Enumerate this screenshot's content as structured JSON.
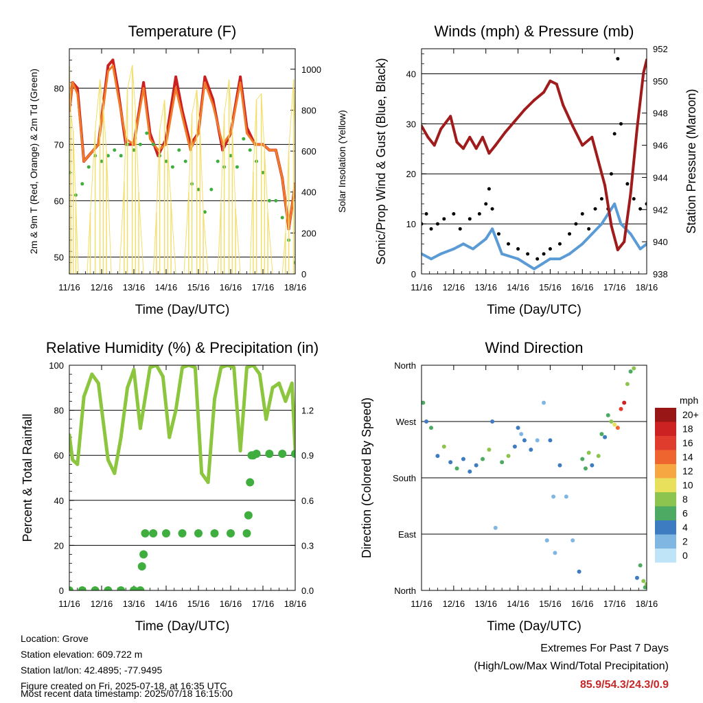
{
  "colors": {
    "temp_2m": "#cc1f1f",
    "temp_9m": "#f07c2a",
    "dewpoint": "#3fae3f",
    "solar": "#f2de6a",
    "wind_sonic": "#5b9bd5",
    "wind_gust": "#000000",
    "pressure": "#a01c1c",
    "rh": "#8cc63f",
    "precip": "#3fae3f"
  },
  "wind_scale": {
    "title": "mph",
    "labels": [
      "20+",
      "18",
      "16",
      "14",
      "12",
      "10",
      "8",
      "6",
      "4",
      "2",
      "0"
    ],
    "colors": [
      "#991616",
      "#cc2222",
      "#e03c2e",
      "#ef6530",
      "#f7a742",
      "#e8e05a",
      "#8cc44f",
      "#4caa62",
      "#3d7cc0",
      "#7fb6e2",
      "#bfe3f7"
    ]
  },
  "footer": {
    "location": "Location: Grove",
    "elevation": "Station elevation: 609.722 m",
    "latlon": "Station lat/lon: 42.4895; -77.9495",
    "created": "Figure created on Fri, 2025-07-18, at 16:35 UTC",
    "recent": "Most recent data timestamp: 2025/07/18 16:15:00"
  },
  "extremes": {
    "title": "Extremes For Past 7 Days",
    "subtitle": "(High/Low/Max Wind/Total Precipitation)",
    "values": "85.9/54.3/24.3/0.9"
  },
  "chart_data": [
    {
      "id": "temperature",
      "type": "line",
      "title": "Temperature (F)",
      "xlabel": "Time (Day/UTC)",
      "ylabel": "2m & 9m T (Red, Orange) & 2m Td (Green)",
      "ylabel_right": "Solar Insolation (Yellow)",
      "x_ticks": [
        "11/16",
        "12/16",
        "13/16",
        "14/16",
        "15/16",
        "16/16",
        "17/16",
        "18/16"
      ],
      "xlim": [
        0,
        7
      ],
      "ylim": [
        47,
        87
      ],
      "y_ticks": [
        50,
        60,
        70,
        80
      ],
      "y2lim": [
        0,
        1100
      ],
      "y2_ticks": [
        0,
        200,
        400,
        600,
        800,
        1000
      ],
      "grid": "horizontal",
      "series": [
        {
          "key": "t2m",
          "style": "line",
          "color_key": "temp_2m",
          "axis": "left",
          "x": [
            0,
            0.1,
            0.25,
            0.45,
            0.6,
            0.9,
            1.2,
            1.35,
            1.5,
            1.75,
            2.0,
            2.3,
            2.5,
            2.75,
            3.0,
            3.3,
            3.5,
            3.75,
            4.0,
            4.2,
            4.45,
            4.75,
            5.0,
            5.3,
            5.5,
            5.75,
            6.0,
            6.2,
            6.4,
            6.6,
            6.8,
            6.95,
            7.0
          ],
          "values": [
            76,
            81,
            80,
            67,
            68,
            70,
            84,
            85,
            80,
            70,
            70,
            81,
            72,
            68,
            71,
            82,
            76,
            70,
            72,
            82,
            78,
            69,
            72,
            82,
            73,
            70,
            70,
            69,
            69,
            64,
            55,
            61,
            63
          ]
        },
        {
          "key": "t9m",
          "style": "line",
          "color_key": "temp_9m",
          "axis": "left",
          "x": [
            0,
            0.1,
            0.25,
            0.45,
            0.6,
            0.9,
            1.2,
            1.35,
            1.5,
            1.75,
            2.0,
            2.3,
            2.5,
            2.75,
            3.0,
            3.3,
            3.5,
            3.75,
            4.0,
            4.2,
            4.45,
            4.75,
            5.0,
            5.3,
            5.5,
            5.75,
            6.0,
            6.2,
            6.4,
            6.6,
            6.8,
            6.95,
            7.0
          ],
          "values": [
            76,
            81,
            79,
            67,
            68,
            70,
            83,
            84,
            79,
            71,
            70,
            80,
            71,
            69,
            70,
            80,
            75,
            69,
            72,
            81,
            77,
            70,
            72,
            81,
            72,
            70,
            70,
            69,
            69,
            64,
            55,
            61,
            63
          ]
        },
        {
          "key": "td",
          "style": "dots",
          "color_key": "dewpoint",
          "axis": "left",
          "x": [
            0,
            0.2,
            0.4,
            0.6,
            0.8,
            1.0,
            1.2,
            1.4,
            1.6,
            1.8,
            2.0,
            2.2,
            2.4,
            2.6,
            2.8,
            3.0,
            3.2,
            3.4,
            3.6,
            3.8,
            4.0,
            4.2,
            4.4,
            4.6,
            4.8,
            5.0,
            5.2,
            5.4,
            5.6,
            5.8,
            6.0,
            6.2,
            6.4,
            6.6,
            6.8,
            7.0
          ],
          "values": [
            65,
            61,
            63,
            66,
            68,
            67,
            68,
            69,
            68,
            70,
            69,
            70,
            72,
            70,
            68,
            67,
            66,
            69,
            67,
            63,
            62,
            58,
            62,
            67,
            66,
            68,
            66,
            71,
            69,
            67,
            65,
            60,
            60,
            57,
            53,
            49
          ]
        },
        {
          "key": "solar",
          "style": "spikes",
          "color_key": "solar",
          "axis": "right",
          "x": [
            0.0,
            0.05,
            0.12,
            0.2,
            0.28,
            0.55,
            0.65,
            0.8,
            0.95,
            1.05,
            1.15,
            1.3,
            1.55,
            1.7,
            1.8,
            1.95,
            2.05,
            2.15,
            2.3,
            2.6,
            2.7,
            2.8,
            2.95,
            3.05,
            3.15,
            3.3,
            3.55,
            3.7,
            3.8,
            3.95,
            4.05,
            4.15,
            4.3,
            4.6,
            4.7,
            4.8,
            4.95,
            5.05,
            5.15,
            5.3,
            5.6,
            5.7,
            5.8,
            5.95,
            6.05,
            6.15,
            6.3,
            6.6,
            6.7,
            6.8,
            6.95,
            7.0
          ],
          "values": [
            1020,
            780,
            700,
            350,
            0,
            0,
            300,
            700,
            950,
            820,
            600,
            0,
            0,
            450,
            900,
            1020,
            800,
            400,
            0,
            0,
            300,
            700,
            850,
            600,
            350,
            0,
            0,
            400,
            780,
            900,
            700,
            300,
            0,
            0,
            350,
            780,
            950,
            700,
            320,
            0,
            0,
            500,
            850,
            880,
            600,
            300,
            0,
            0,
            200,
            600,
            950,
            700
          ]
        }
      ]
    },
    {
      "id": "winds",
      "type": "scatter",
      "title": "Winds (mph) & Pressure (mb)",
      "xlabel": "Time (Day/UTC)",
      "ylabel": "Sonic/Prop Wind & Gust (Blue, Black)",
      "ylabel_right": "Station Pressure (Maroon)",
      "x_ticks": [
        "11/16",
        "12/16",
        "13/16",
        "14/16",
        "15/16",
        "16/16",
        "17/16",
        "18/16"
      ],
      "xlim": [
        0,
        7
      ],
      "ylim": [
        0,
        45
      ],
      "y_ticks": [
        0,
        10,
        20,
        30,
        40
      ],
      "y2lim": [
        938,
        952
      ],
      "y2_ticks": [
        938,
        940,
        942,
        944,
        946,
        948,
        950,
        952
      ],
      "grid": "horizontal",
      "series": [
        {
          "key": "sonic",
          "style": "line",
          "color_key": "wind_sonic",
          "axis": "left",
          "x": [
            0,
            0.3,
            0.6,
            1.0,
            1.3,
            1.6,
            2.0,
            2.2,
            2.5,
            3.0,
            3.5,
            3.75,
            4.0,
            4.3,
            4.6,
            5.0,
            5.3,
            5.6,
            6.0,
            6.2,
            6.5,
            6.8,
            7.0
          ],
          "values": [
            4,
            3,
            4,
            5,
            6,
            5,
            7,
            9,
            4,
            3,
            1,
            2,
            3,
            3,
            4,
            6,
            8,
            10,
            14,
            10,
            8,
            5,
            6
          ]
        },
        {
          "key": "gust",
          "style": "dots",
          "color_key": "wind_gust",
          "axis": "left",
          "x": [
            0,
            0.15,
            0.3,
            0.5,
            0.7,
            1.0,
            1.2,
            1.5,
            1.8,
            2.0,
            2.1,
            2.2,
            2.4,
            2.7,
            3.0,
            3.3,
            3.6,
            3.8,
            4.0,
            4.3,
            4.6,
            4.8,
            5.0,
            5.2,
            5.4,
            5.6,
            5.8,
            5.9,
            6.0,
            6.1,
            6.2,
            6.4,
            6.6,
            6.8,
            7.0
          ],
          "values": [
            10,
            12,
            9,
            10,
            11,
            12,
            9,
            11,
            12,
            14,
            17,
            13,
            8,
            6,
            5,
            4,
            3,
            4,
            5,
            6,
            8,
            10,
            12,
            9,
            13,
            15,
            13,
            20,
            28,
            43,
            30,
            18,
            15,
            13,
            14
          ]
        },
        {
          "key": "pressure",
          "style": "line",
          "color_key": "pressure",
          "axis": "right",
          "x": [
            0,
            0.2,
            0.4,
            0.6,
            0.9,
            1.1,
            1.3,
            1.5,
            1.7,
            1.9,
            2.1,
            2.3,
            2.6,
            2.9,
            3.2,
            3.5,
            3.8,
            4.0,
            4.2,
            4.4,
            4.7,
            5.0,
            5.3,
            5.5,
            5.7,
            5.9,
            6.1,
            6.3,
            6.5,
            6.7,
            6.9,
            7.0
          ],
          "values": [
            947.2,
            946.5,
            946.0,
            947.0,
            947.8,
            946.2,
            945.8,
            946.5,
            945.8,
            946.5,
            945.5,
            946.0,
            946.8,
            947.5,
            948.2,
            948.8,
            949.3,
            950.0,
            949.8,
            948.5,
            947.2,
            946.0,
            946.5,
            945.0,
            943.5,
            941.0,
            939.5,
            940.0,
            943.0,
            947.0,
            950.5,
            951.3
          ]
        }
      ]
    },
    {
      "id": "humidity",
      "type": "scatter",
      "title": "Relative Humidity (%) & Precipitation (in)",
      "xlabel": "Time (Day/UTC)",
      "ylabel": "Percent & Total Rainfall",
      "x_ticks": [
        "11/16",
        "12/16",
        "13/16",
        "14/16",
        "15/16",
        "16/16",
        "17/16",
        "18/16"
      ],
      "xlim": [
        0,
        7
      ],
      "ylim": [
        0,
        100
      ],
      "y_ticks": [
        0,
        20,
        40,
        60,
        80,
        100
      ],
      "y2lim": [
        0,
        1.5
      ],
      "y2_ticks": [
        0.0,
        0.3,
        0.6,
        0.9,
        1.2
      ],
      "y2_tick_labels": [
        "0.0",
        "0.3",
        "0.6",
        "0.9",
        "1.2"
      ],
      "grid": "horizontal",
      "series": [
        {
          "key": "rh",
          "style": "line",
          "color_key": "rh",
          "axis": "left",
          "x": [
            0,
            0.1,
            0.25,
            0.45,
            0.7,
            0.9,
            1.2,
            1.4,
            1.6,
            1.8,
            2.0,
            2.2,
            2.5,
            2.7,
            2.9,
            3.1,
            3.3,
            3.5,
            3.7,
            3.9,
            4.1,
            4.3,
            4.5,
            4.7,
            4.9,
            5.1,
            5.3,
            5.5,
            5.7,
            5.9,
            6.1,
            6.3,
            6.5,
            6.7,
            6.9,
            7.0
          ],
          "values": [
            69,
            58,
            56,
            86,
            96,
            92,
            58,
            52,
            68,
            90,
            98,
            72,
            99,
            100,
            95,
            68,
            80,
            99,
            100,
            99,
            52,
            48,
            85,
            99,
            100,
            99,
            62,
            99,
            100,
            96,
            76,
            90,
            92,
            84,
            92,
            62
          ]
        },
        {
          "key": "precip",
          "style": "dots",
          "color_key": "precip",
          "axis": "right",
          "x": [
            0,
            0.4,
            0.8,
            1.2,
            1.6,
            2.0,
            2.2,
            2.25,
            2.3,
            2.35,
            2.6,
            3.0,
            3.5,
            4.0,
            4.5,
            5.0,
            5.5,
            5.55,
            5.6,
            5.65,
            5.7,
            5.8,
            6.2,
            6.6,
            7.0
          ],
          "values": [
            0.0,
            0.0,
            0.0,
            0.0,
            0.0,
            0.0,
            0.0,
            0.16,
            0.24,
            0.38,
            0.38,
            0.38,
            0.38,
            0.38,
            0.38,
            0.38,
            0.38,
            0.5,
            0.72,
            0.9,
            0.9,
            0.91,
            0.91,
            0.91,
            0.91
          ]
        }
      ]
    },
    {
      "id": "wind_direction",
      "type": "scatter",
      "title": "Wind Direction",
      "xlabel": "Time (Day/UTC)",
      "ylabel": "Direction (Colored By Speed)",
      "x_ticks": [
        "11/16",
        "12/16",
        "13/16",
        "14/16",
        "15/16",
        "16/16",
        "17/16",
        "18/16"
      ],
      "xlim": [
        0,
        7
      ],
      "ylim": [
        0,
        360
      ],
      "y_ticks": [
        0,
        90,
        180,
        270,
        360
      ],
      "y_tick_labels": [
        "North",
        "East",
        "South",
        "West",
        "North"
      ],
      "grid": "horizontal",
      "series": [
        {
          "key": "direction",
          "style": "dots",
          "x": [
            0.05,
            0.15,
            0.3,
            0.5,
            0.7,
            0.9,
            1.1,
            1.3,
            1.5,
            1.7,
            1.9,
            2.1,
            2.2,
            2.3,
            2.5,
            2.7,
            2.9,
            3.0,
            3.1,
            3.2,
            3.4,
            3.6,
            3.8,
            3.9,
            4.0,
            4.1,
            4.15,
            4.3,
            4.5,
            4.7,
            4.9,
            5.0,
            5.1,
            5.2,
            5.3,
            5.5,
            5.6,
            5.7,
            5.8,
            5.9,
            6.0,
            6.1,
            6.2,
            6.3,
            6.4,
            6.5,
            6.6,
            6.7,
            6.8,
            6.9,
            6.95,
            7.0
          ],
          "values": [
            300,
            270,
            260,
            215,
            230,
            205,
            195,
            210,
            190,
            200,
            210,
            225,
            270,
            100,
            205,
            215,
            230,
            260,
            250,
            240,
            225,
            240,
            300,
            80,
            240,
            150,
            60,
            200,
            150,
            80,
            30,
            210,
            195,
            220,
            200,
            215,
            250,
            245,
            280,
            270,
            265,
            260,
            290,
            300,
            330,
            350,
            355,
            20,
            40,
            15,
            5,
            10
          ],
          "speeds": [
            6,
            4,
            6,
            4,
            8,
            4,
            6,
            4,
            4,
            4,
            6,
            8,
            4,
            2,
            6,
            8,
            4,
            4,
            2,
            4,
            4,
            2,
            2,
            2,
            4,
            2,
            2,
            4,
            2,
            2,
            4,
            6,
            6,
            8,
            4,
            8,
            6,
            4,
            6,
            8,
            10,
            14,
            16,
            18,
            8,
            6,
            8,
            4,
            6,
            8,
            6,
            8
          ]
        }
      ]
    }
  ]
}
